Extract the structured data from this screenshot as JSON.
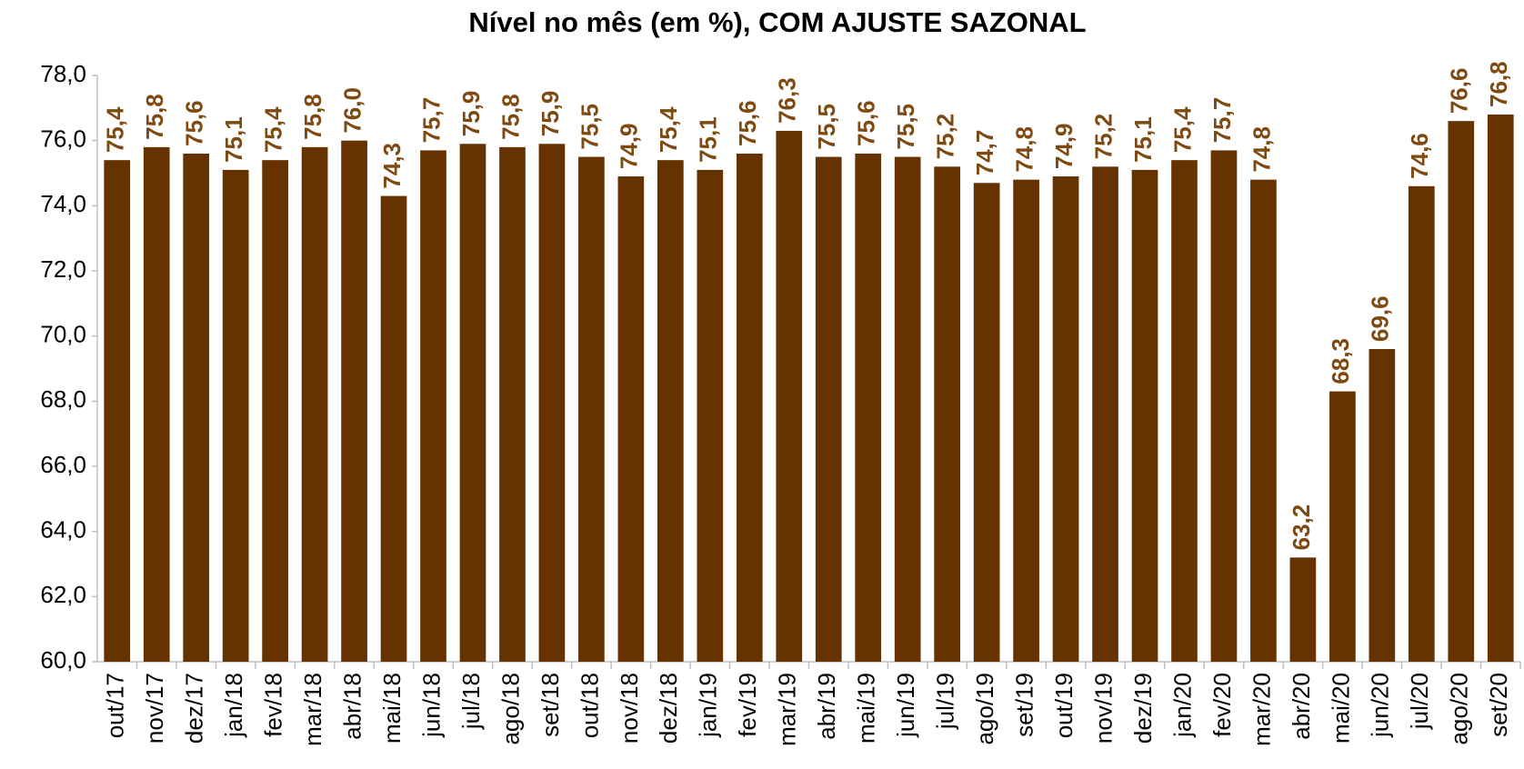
{
  "chart_data": {
    "type": "bar",
    "title": "Nível no mês (em %), COM AJUSTE SAZONAL",
    "categories": [
      "out/17",
      "nov/17",
      "dez/17",
      "jan/18",
      "fev/18",
      "mar/18",
      "abr/18",
      "mai/18",
      "jun/18",
      "jul/18",
      "ago/18",
      "set/18",
      "out/18",
      "nov/18",
      "dez/18",
      "jan/19",
      "fev/19",
      "mar/19",
      "abr/19",
      "mai/19",
      "jun/19",
      "jul/19",
      "ago/19",
      "set/19",
      "out/19",
      "nov/19",
      "dez/19",
      "jan/20",
      "fev/20",
      "mar/20",
      "abr/20",
      "mai/20",
      "jun/20",
      "jul/20",
      "ago/20",
      "set/20"
    ],
    "values": [
      75.4,
      75.8,
      75.6,
      75.1,
      75.4,
      75.8,
      76.0,
      74.3,
      75.7,
      75.9,
      75.8,
      75.9,
      75.5,
      74.9,
      75.4,
      75.1,
      75.6,
      76.3,
      75.5,
      75.6,
      75.5,
      75.2,
      74.7,
      74.8,
      74.9,
      75.2,
      75.1,
      75.4,
      75.7,
      74.8,
      63.2,
      68.3,
      69.6,
      74.6,
      76.6,
      76.8
    ],
    "value_labels": [
      "75,4",
      "75,8",
      "75,6",
      "75,1",
      "75,4",
      "75,8",
      "76,0",
      "74,3",
      "75,7",
      "75,9",
      "75,8",
      "75,9",
      "75,5",
      "74,9",
      "75,4",
      "75,1",
      "75,6",
      "76,3",
      "75,5",
      "75,6",
      "75,5",
      "75,2",
      "74,7",
      "74,8",
      "74,9",
      "75,2",
      "75,1",
      "75,4",
      "75,7",
      "74,8",
      "63,2",
      "68,3",
      "69,6",
      "74,6",
      "76,6",
      "76,8"
    ],
    "color": "#663300",
    "value_label_color": "#7f4a12",
    "ylim": [
      60,
      78
    ],
    "yticks": [
      {
        "value": 60,
        "label": "60,0"
      },
      {
        "value": 62,
        "label": "62,0"
      },
      {
        "value": 64,
        "label": "64,0"
      },
      {
        "value": 66,
        "label": "66,0"
      },
      {
        "value": 68,
        "label": "68,0"
      },
      {
        "value": 70,
        "label": "70,0"
      },
      {
        "value": 72,
        "label": "72,0"
      },
      {
        "value": 74,
        "label": "74,0"
      },
      {
        "value": 76,
        "label": "76,0"
      },
      {
        "value": 78,
        "label": "78,0"
      }
    ],
    "grid": false
  }
}
